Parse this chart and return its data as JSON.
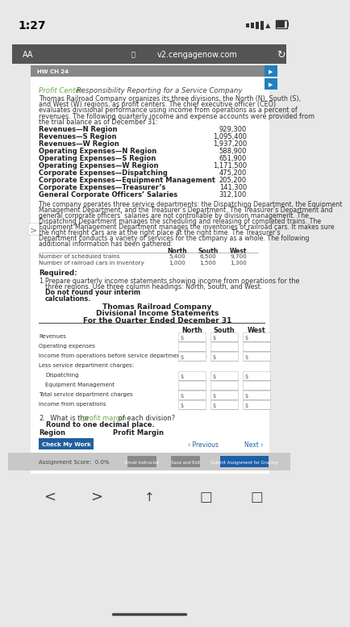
{
  "status_bar_time": "1:27",
  "url": "v2.cengagenow.com",
  "hw_label": "HW CH 24",
  "title_green": "Profit Center",
  "title_rest": " Responsibility Reporting for a Service Company",
  "body_text": "Thomas Railroad Company organizes its three divisions, the North (N), South (S), and West (W) regions, as profit centers. The chief executive officer (CEO) evaluates divisional performance using income from operations as a percent of revenues. The following quarterly income and expense accounts were provided from the trial balance as of December 31:",
  "line_items": [
    [
      "Revenues—N Region",
      "929,300"
    ],
    [
      "Revenues—S Region",
      "1,095,400"
    ],
    [
      "Revenues—W Region",
      "1,937,200"
    ],
    [
      "Operating Expenses—N Region",
      "588,900"
    ],
    [
      "Operating Expenses—S Region",
      "651,900"
    ],
    [
      "Operating Expenses—W Region",
      "1,171,500"
    ],
    [
      "Corporate Expenses—Dispatching",
      "475,200"
    ],
    [
      "Corporate Expenses—Equipment Management",
      "205,200"
    ],
    [
      "Corporate Expenses—Treasurer’s",
      "141,300"
    ],
    [
      "General Corporate Officers’ Salaries",
      "312,100"
    ]
  ],
  "paragraph2": "The company operates three service departments: the Dispatching Department, the Equipment Management Department, and the Treasurer’s Department. The Treasurer’s Department and general corporate officers’ salaries are not controllable by division management. The Dispatching Department manages the scheduling and releasing of completed trains. The Equipment Management Department manages the inventories of railroad cars. It makes sure the right freight cars are at the right place at the right time. The Treasurer’s Department conducts a variety of services for the company as a whole. The following additional information has been gathered:",
  "table_headers": [
    "North",
    "South",
    "West"
  ],
  "table_rows": [
    [
      "Number of scheduled trains",
      "5,400",
      "6,500",
      "9,700"
    ],
    [
      "Number of railroad cars in inventory",
      "1,000",
      "1,500",
      "1,300"
    ]
  ],
  "required_label": "Required:",
  "req1_prefix": "1.",
  "req1_text": "  Prepare quarterly income statements showing income from operations for the three regions. Use three column headings: North, South, and West. ",
  "req1_bold": "Do not round your interim",
  "req1_bold2": "calculations.",
  "company_title1": "Thomas Railroad Company",
  "company_title2": "Divisional Income Statements",
  "company_title3": "For the Quarter Ended December 31",
  "stmt_headers": [
    "North",
    "South",
    "West"
  ],
  "stmt_rows": [
    {
      "label": "Revenues",
      "indent": 0,
      "dollar": true,
      "header": false,
      "underline": false
    },
    {
      "label": "Operating expenses",
      "indent": 0,
      "dollar": false,
      "header": false,
      "underline": false
    },
    {
      "label": "Income from operations before service department charges",
      "indent": 0,
      "dollar": true,
      "header": false,
      "underline": false
    },
    {
      "label": "Less service department charges:",
      "indent": 0,
      "dollar": false,
      "header": true,
      "underline": false
    },
    {
      "label": "Dispatching",
      "indent": 1,
      "dollar": true,
      "header": false,
      "underline": false
    },
    {
      "label": "Equipment Management",
      "indent": 1,
      "dollar": false,
      "header": false,
      "underline": false
    },
    {
      "label": "Total service department charges",
      "indent": 0,
      "dollar": true,
      "header": false,
      "underline": false
    },
    {
      "label": "Income from operations",
      "indent": 0,
      "dollar": true,
      "header": false,
      "underline": true
    }
  ],
  "req2_prefix": "2.",
  "req2_text": "  What is the ",
  "req2_green": "profit margin",
  "req2_end": " of each division? ",
  "req2_bold": "Round to one decimal place.",
  "region_col": "Region",
  "profit_margin_col": "Profit Margin",
  "btn_check": "Check My Work",
  "btn_previous": "‹ Previous",
  "btn_next": "Next ›",
  "assignment_score": "Assignment Score:  0.0%",
  "btn_email": "Email Instructor",
  "btn_save": "Save and Exit",
  "btn_submit": "Submit Assignment for Grading",
  "bg_color": "#e8e8e8",
  "content_bg": "#ffffff",
  "green_color": "#6aaa4a",
  "hw_bar_bg": "#888888",
  "blue_btn_color": "#2060a0",
  "gray_btn_color": "#888888",
  "submit_btn_color": "#1a5fa8",
  "url_bar_bg": "#555555",
  "right_circle_color": "#1a7ac8"
}
